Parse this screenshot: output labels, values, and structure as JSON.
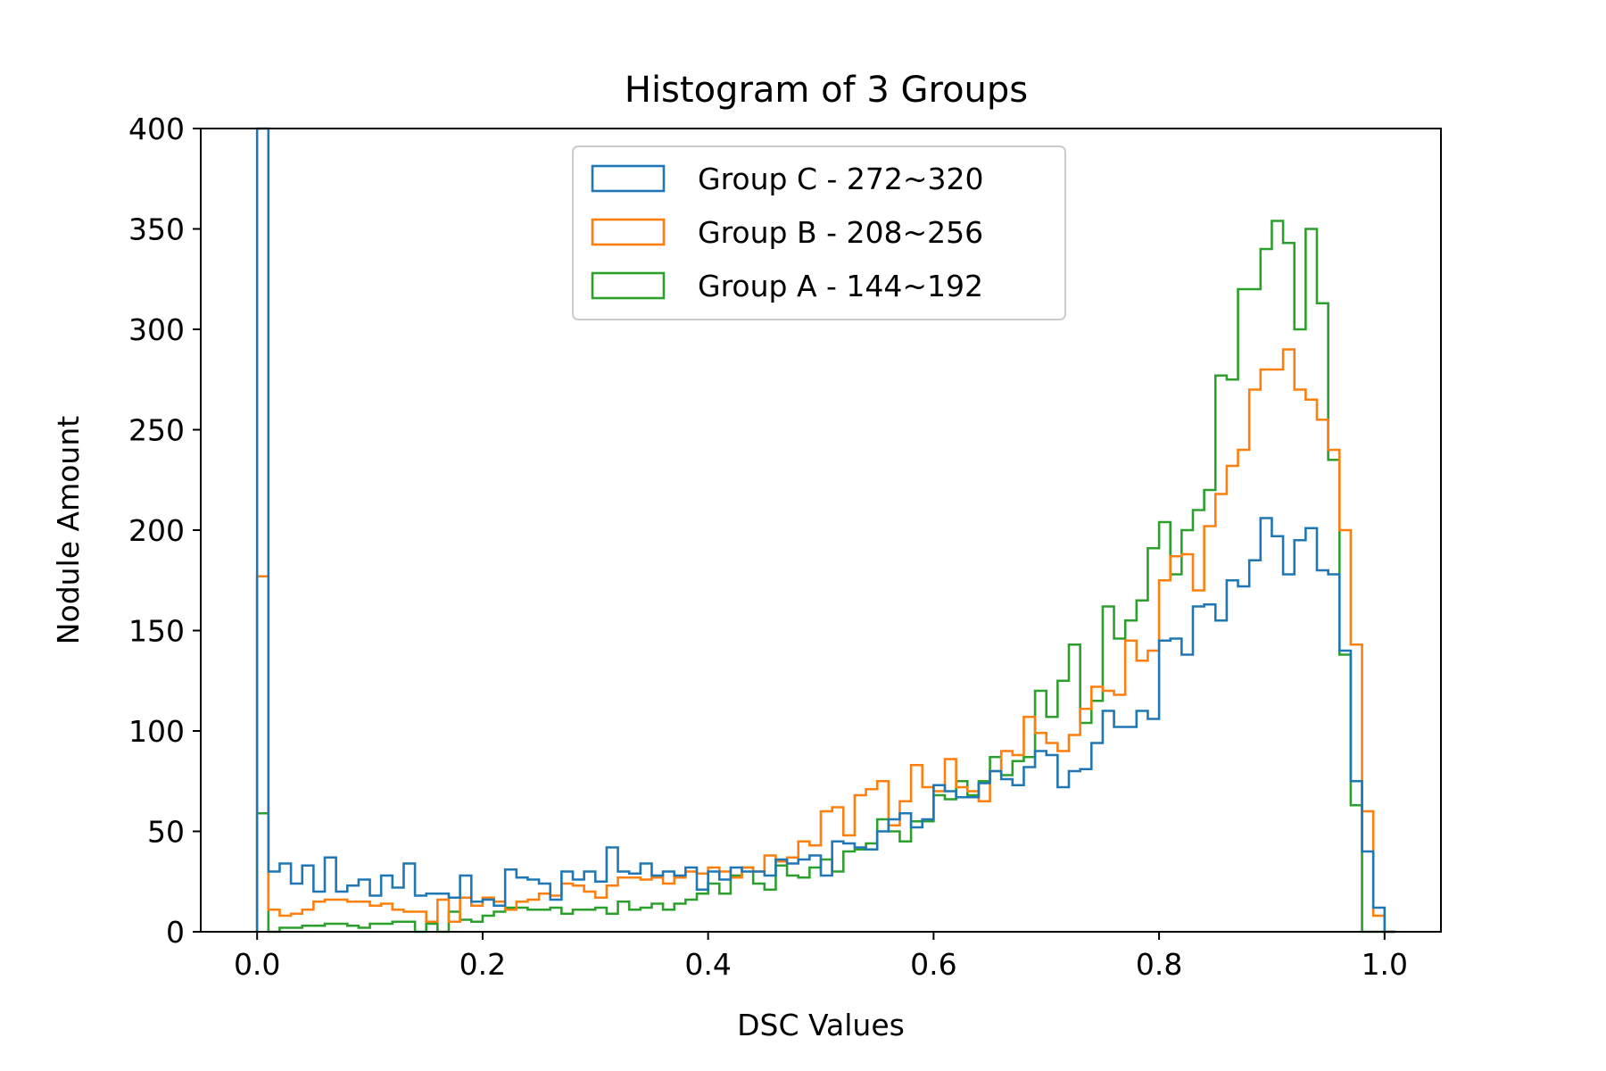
{
  "chart_data": {
    "type": "histogram",
    "title": "Histogram of 3 Groups",
    "xlabel": "DSC Values",
    "ylabel": "Nodule Amount",
    "xlim": [
      -0.05,
      1.05
    ],
    "ylim": [
      0,
      400
    ],
    "xticks": [
      0.0,
      0.2,
      0.4,
      0.6,
      0.8,
      1.0
    ],
    "xtick_labels": [
      "0.0",
      "0.2",
      "0.4",
      "0.6",
      "0.8",
      "1.0"
    ],
    "yticks": [
      0,
      50,
      100,
      150,
      200,
      250,
      300,
      350,
      400
    ],
    "ytick_labels": [
      "0",
      "50",
      "100",
      "150",
      "200",
      "250",
      "300",
      "350",
      "400"
    ],
    "grid": false,
    "legend_position": "top-center",
    "bin_start": 0.0,
    "bin_width": 0.01,
    "series": [
      {
        "name": "Group C - 272~320",
        "color": "#1f77b4",
        "values": [
          400,
          30,
          34,
          24,
          33,
          20,
          37,
          20,
          23,
          26,
          18,
          28,
          22,
          34,
          18,
          19,
          19,
          17,
          28,
          15,
          16,
          13,
          31,
          27,
          26,
          24,
          16,
          30,
          26,
          30,
          25,
          42,
          30,
          29,
          34,
          28,
          30,
          28,
          32,
          21,
          30,
          26,
          32,
          30,
          30,
          28,
          36,
          34,
          36,
          38,
          28,
          45,
          44,
          42,
          41,
          50,
          56,
          59,
          52,
          56,
          73,
          70,
          67,
          67,
          74,
          80,
          76,
          73,
          82,
          90,
          88,
          72,
          80,
          81,
          94,
          110,
          102,
          102,
          110,
          106,
          145,
          146,
          138,
          162,
          163,
          155,
          175,
          172,
          185,
          206,
          197,
          178,
          195,
          201,
          180,
          178,
          140,
          75,
          40,
          12,
          0
        ]
      },
      {
        "name": "Group B - 208~256",
        "color": "#ff7f0e",
        "values": [
          177,
          11,
          8,
          9,
          11,
          15,
          16,
          16,
          15,
          15,
          13,
          14,
          11,
          10,
          10,
          5,
          16,
          5,
          17,
          13,
          17,
          15,
          11,
          15,
          16,
          19,
          18,
          24,
          23,
          20,
          17,
          23,
          27,
          27,
          26,
          27,
          24,
          27,
          30,
          29,
          32,
          30,
          27,
          32,
          30,
          38,
          35,
          37,
          45,
          43,
          60,
          62,
          48,
          68,
          71,
          75,
          53,
          65,
          83,
          72,
          70,
          86,
          72,
          70,
          65,
          80,
          90,
          88,
          107,
          99,
          94,
          90,
          98,
          111,
          122,
          120,
          118,
          145,
          135,
          140,
          175,
          187,
          188,
          170,
          202,
          218,
          232,
          240,
          270,
          280,
          280,
          290,
          270,
          265,
          255,
          240,
          200,
          143,
          60,
          8,
          0
        ]
      },
      {
        "name": "Group A - 144~192",
        "color": "#2ca02c",
        "values": [
          59,
          0,
          2,
          2,
          3,
          3,
          4,
          4,
          3,
          2,
          4,
          4,
          5,
          5,
          0,
          4,
          0,
          10,
          6,
          5,
          8,
          10,
          12,
          12,
          11,
          11,
          12,
          9,
          11,
          11,
          12,
          9,
          15,
          11,
          12,
          14,
          11,
          14,
          16,
          19,
          24,
          19,
          28,
          32,
          24,
          21,
          33,
          28,
          27,
          32,
          36,
          30,
          40,
          41,
          44,
          56,
          50,
          45,
          55,
          55,
          68,
          66,
          75,
          68,
          75,
          87,
          78,
          85,
          87,
          120,
          107,
          125,
          143,
          104,
          115,
          162,
          146,
          155,
          165,
          191,
          204,
          178,
          200,
          210,
          220,
          277,
          275,
          320,
          320,
          340,
          354,
          343,
          300,
          350,
          313,
          235,
          138,
          63,
          0,
          0,
          0
        ]
      }
    ]
  }
}
